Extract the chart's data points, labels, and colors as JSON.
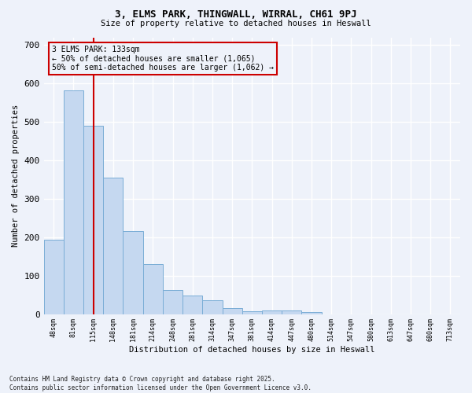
{
  "title": "3, ELMS PARK, THINGWALL, WIRRAL, CH61 9PJ",
  "subtitle": "Size of property relative to detached houses in Heswall",
  "xlabel": "Distribution of detached houses by size in Heswall",
  "ylabel": "Number of detached properties",
  "bar_color": "#c5d8f0",
  "bar_edge_color": "#7aadd6",
  "background_color": "#eef2fa",
  "grid_color": "#ffffff",
  "vline_color": "#cc0000",
  "annotation_text": "3 ELMS PARK: 133sqm\n← 50% of detached houses are smaller (1,065)\n50% of semi-detached houses are larger (1,062) →",
  "annotation_box_color": "#cc0000",
  "categories": [
    "48sqm",
    "81sqm",
    "115sqm",
    "148sqm",
    "181sqm",
    "214sqm",
    "248sqm",
    "281sqm",
    "314sqm",
    "347sqm",
    "381sqm",
    "414sqm",
    "447sqm",
    "480sqm",
    "514sqm",
    "547sqm",
    "580sqm",
    "613sqm",
    "647sqm",
    "680sqm",
    "713sqm"
  ],
  "values": [
    193,
    582,
    490,
    355,
    216,
    130,
    63,
    48,
    36,
    15,
    7,
    10,
    9,
    5,
    0,
    0,
    0,
    0,
    0,
    0,
    0
  ],
  "ylim": [
    0,
    720
  ],
  "yticks": [
    0,
    100,
    200,
    300,
    400,
    500,
    600,
    700
  ],
  "footer_text": "Contains HM Land Registry data © Crown copyright and database right 2025.\nContains public sector information licensed under the Open Government Licence v3.0.",
  "vline_bar_index": 2
}
